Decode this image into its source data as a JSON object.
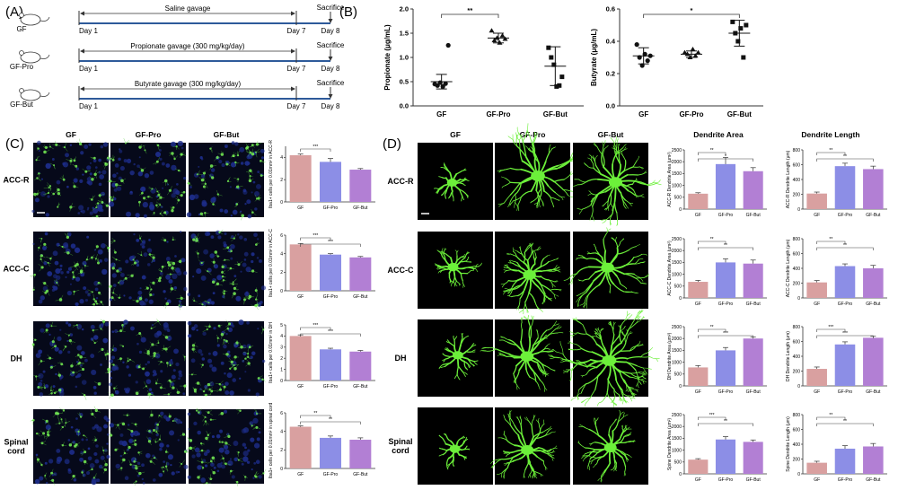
{
  "panels": {
    "a": "(A)",
    "b": "(B)",
    "c": "(C)",
    "d": "(D)"
  },
  "panelA": {
    "rows": [
      {
        "group": "GF",
        "treatment": "Saline gavage",
        "day_start": "Day 1",
        "day_end": "Day 7",
        "sac": "Sacrifice",
        "sac_day": "Day 8"
      },
      {
        "group": "GF-Pro",
        "treatment": "Propionate gavage (300 mg/kg/day)",
        "day_start": "Day 1",
        "day_end": "Day 7",
        "sac": "Sacrifice",
        "sac_day": "Day 8"
      },
      {
        "group": "GF-But",
        "treatment": "Butyrate gavage (300 mg/kg/day)",
        "day_start": "Day 1",
        "day_end": "Day 7",
        "sac": "Sacrifice",
        "sac_day": "Day 8"
      }
    ]
  },
  "panelC": {
    "columns": [
      "GF",
      "GF-Pro",
      "GF-But"
    ],
    "rows": [
      "ACC-R",
      "ACC-C",
      "DH",
      "Spinal\ncord"
    ]
  },
  "panelD": {
    "columns": [
      "GF",
      "GF-Pro",
      "GF-But"
    ],
    "rows": [
      "ACC-R",
      "ACC-C",
      "DH",
      "Spinal\ncord"
    ],
    "area_title": "Dendrite Area",
    "length_title": "Dendrite Length"
  },
  "colors": {
    "gf": "#d9a0a0",
    "pro": "#8c8ee6",
    "but": "#b27fd4",
    "microglia": "#6cf03a",
    "nuclei": "#1d2d8a"
  },
  "chart_data": [
    {
      "id": "propionate",
      "type": "scatter",
      "categories": [
        "GF",
        "GF-Pro",
        "GF-But"
      ],
      "ylabel": "Propionate (μg/mL)",
      "ylim": [
        0,
        2.0
      ],
      "yticks": [
        "0.0",
        "0.5",
        "1.0",
        "1.5",
        "2.0"
      ],
      "points": [
        [
          0.45,
          0.42,
          0.48,
          0.4,
          0.46,
          1.25
        ],
        [
          1.55,
          1.35,
          1.4,
          1.3,
          1.45,
          1.38
        ],
        [
          1.2,
          1.0,
          0.85,
          0.4,
          0.42,
          0.6
        ]
      ],
      "mean": [
        0.5,
        1.4,
        0.82
      ],
      "err": [
        0.15,
        0.1,
        0.4
      ],
      "sig": [
        {
          "from": 0,
          "to": 1,
          "label": "**"
        }
      ]
    },
    {
      "id": "butyrate",
      "type": "scatter",
      "categories": [
        "GF",
        "GF-Pro",
        "GF-But"
      ],
      "ylabel": "Butyrate (μg/mL)",
      "ylim": [
        0,
        0.6
      ],
      "yticks": [
        "0.0",
        "0.2",
        "0.4",
        "0.6"
      ],
      "points": [
        [
          0.38,
          0.3,
          0.25,
          0.32,
          0.28,
          0.31
        ],
        [
          0.33,
          0.32,
          0.3,
          0.35,
          0.31,
          0.33
        ],
        [
          0.52,
          0.45,
          0.4,
          0.48,
          0.3,
          0.5
        ]
      ],
      "mean": [
        0.31,
        0.32,
        0.45
      ],
      "err": [
        0.05,
        0.02,
        0.08
      ],
      "sig": [
        {
          "from": 0,
          "to": 2,
          "label": "*"
        }
      ]
    },
    {
      "id": "c-accr",
      "type": "bar",
      "categories": [
        "GF",
        "GF-Pro",
        "GF-But"
      ],
      "ylabel": "Iba1+ cells per 0.01mm² in ACC-R",
      "ylim": [
        0,
        5
      ],
      "yticks": [
        "0",
        "2",
        "4"
      ],
      "values": [
        4.2,
        3.6,
        2.9
      ],
      "err": [
        0.1,
        0.3,
        0.1
      ],
      "sig": [
        "***"
      ]
    },
    {
      "id": "c-accc",
      "type": "bar",
      "categories": [
        "GF",
        "GF-Pro",
        "GF-But"
      ],
      "ylabel": "Iba1+ cells per 0.01mm² in ACC-C",
      "ylim": [
        0,
        6
      ],
      "yticks": [
        "0",
        "2",
        "4",
        "6"
      ],
      "values": [
        5.0,
        3.9,
        3.6
      ],
      "err": [
        0.1,
        0.1,
        0.1
      ],
      "sig": [
        "***",
        "***"
      ]
    },
    {
      "id": "c-dh",
      "type": "bar",
      "categories": [
        "GF",
        "GF-Pro",
        "GF-But"
      ],
      "ylabel": "Iba1+ cells per 0.01mm² in DH",
      "ylim": [
        0,
        5
      ],
      "yticks": [
        "0",
        "1",
        "2",
        "3",
        "4",
        "5"
      ],
      "values": [
        4.0,
        2.8,
        2.6
      ],
      "err": [
        0.1,
        0.1,
        0.1
      ],
      "sig": [
        "***",
        "***"
      ]
    },
    {
      "id": "c-sc",
      "type": "bar",
      "categories": [
        "GF",
        "GF-Pro",
        "GF-But"
      ],
      "ylabel": "Iba1+ cells per 0.01mm² in spinal cord",
      "ylim": [
        0,
        6
      ],
      "yticks": [
        "0",
        "2",
        "4",
        "6"
      ],
      "values": [
        4.5,
        3.3,
        3.1
      ],
      "err": [
        0.1,
        0.2,
        0.2
      ],
      "sig": [
        "**",
        "**"
      ]
    },
    {
      "id": "d-area-accr",
      "type": "bar",
      "categories": [
        "GF",
        "GF-Pro",
        "GF-But"
      ],
      "ylabel": "ACC-R Dendrite Area (μm²)",
      "ylim": [
        0,
        2500
      ],
      "yticks": [
        "0",
        "500",
        "1000",
        "1500",
        "2000",
        "2500"
      ],
      "values": [
        650,
        1900,
        1600
      ],
      "err": [
        40,
        280,
        150
      ],
      "sig": [
        "**",
        "*"
      ]
    },
    {
      "id": "d-len-accr",
      "type": "bar",
      "categories": [
        "GF",
        "GF-Pro",
        "GF-But"
      ],
      "ylabel": "ACC-R Dendrite Length (μm)",
      "ylim": [
        0,
        800
      ],
      "yticks": [
        "0",
        "200",
        "400",
        "600",
        "800"
      ],
      "values": [
        210,
        580,
        540
      ],
      "err": [
        20,
        40,
        40
      ],
      "sig": [
        "**",
        "**"
      ]
    },
    {
      "id": "d-area-accc",
      "type": "bar",
      "categories": [
        "GF",
        "GF-Pro",
        "GF-But"
      ],
      "ylabel": "ACC-C Dendrite Area (μm²)",
      "ylim": [
        0,
        2500
      ],
      "yticks": [
        "0",
        "500",
        "1000",
        "1500",
        "2000",
        "2500"
      ],
      "values": [
        680,
        1500,
        1450
      ],
      "err": [
        60,
        150,
        150
      ],
      "sig": [
        "**",
        "**"
      ]
    },
    {
      "id": "d-len-accc",
      "type": "bar",
      "categories": [
        "GF",
        "GF-Pro",
        "GF-But"
      ],
      "ylabel": "ACC-C Dendrite Length (μm)",
      "ylim": [
        0,
        800
      ],
      "yticks": [
        "0",
        "200",
        "400",
        "600",
        "800"
      ],
      "values": [
        210,
        430,
        400
      ],
      "err": [
        25,
        30,
        40
      ],
      "sig": [
        "**",
        "**"
      ]
    },
    {
      "id": "d-area-dh",
      "type": "bar",
      "categories": [
        "GF",
        "GF-Pro",
        "GF-But"
      ],
      "ylabel": "DH Dendrite Area (μm²)",
      "ylim": [
        0,
        2500
      ],
      "yticks": [
        "0",
        "500",
        "1000",
        "1500",
        "2000",
        "2500"
      ],
      "values": [
        780,
        1500,
        2000
      ],
      "err": [
        80,
        120,
        60
      ],
      "sig": [
        "**",
        "***"
      ]
    },
    {
      "id": "d-len-dh",
      "type": "bar",
      "categories": [
        "GF",
        "GF-Pro",
        "GF-But"
      ],
      "ylabel": "DH Dendrite Length (μm)",
      "ylim": [
        0,
        800
      ],
      "yticks": [
        "0",
        "200",
        "400",
        "600",
        "800"
      ],
      "values": [
        230,
        560,
        650
      ],
      "err": [
        25,
        35,
        20
      ],
      "sig": [
        "***",
        "***"
      ]
    },
    {
      "id": "d-area-sc",
      "type": "bar",
      "categories": [
        "GF",
        "GF-Pro",
        "GF-But"
      ],
      "ylabel": "Spine Dendrite Area (μm²)",
      "ylim": [
        0,
        2500
      ],
      "yticks": [
        "0",
        "500",
        "1000",
        "1500",
        "2000",
        "2500"
      ],
      "values": [
        600,
        1450,
        1350
      ],
      "err": [
        40,
        120,
        80
      ],
      "sig": [
        "***",
        "**"
      ]
    },
    {
      "id": "d-len-sc",
      "type": "bar",
      "categories": [
        "GF",
        "GF-Pro",
        "GF-But"
      ],
      "ylabel": "Spine Dendrite Length (μm)",
      "ylim": [
        0,
        800
      ],
      "yticks": [
        "0",
        "200",
        "400",
        "600",
        "800"
      ],
      "values": [
        150,
        340,
        370
      ],
      "err": [
        20,
        40,
        40
      ],
      "sig": [
        "**",
        "**"
      ]
    }
  ]
}
